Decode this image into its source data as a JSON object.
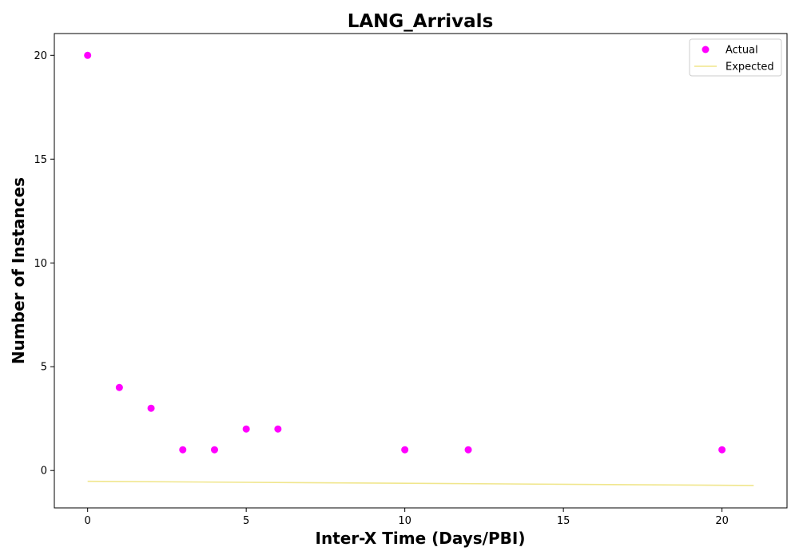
{
  "chart_data": {
    "type": "scatter",
    "title": "LANG_Arrivals",
    "xlabel": "Inter-X Time (Days/PBI)",
    "ylabel": "Number of Instances",
    "xlim": [
      -1.05,
      22.05
    ],
    "ylim": [
      -1.8,
      21.05
    ],
    "xticks": [
      0,
      5,
      10,
      15,
      20
    ],
    "yticks": [
      0,
      5,
      10,
      15,
      20
    ],
    "grid": false,
    "legend_position": "top-right",
    "series": [
      {
        "name": "Actual",
        "kind": "scatter",
        "color": "#ff00ff",
        "x": [
          0,
          1,
          2,
          3,
          4,
          5,
          6,
          10,
          12,
          20
        ],
        "y": [
          20,
          4,
          3,
          1,
          1,
          2,
          2,
          1,
          1,
          1
        ]
      },
      {
        "name": "Expected",
        "kind": "line",
        "color": "#f0e68c",
        "x": [
          0,
          21
        ],
        "y": [
          -0.52,
          -0.72
        ]
      }
    ]
  }
}
